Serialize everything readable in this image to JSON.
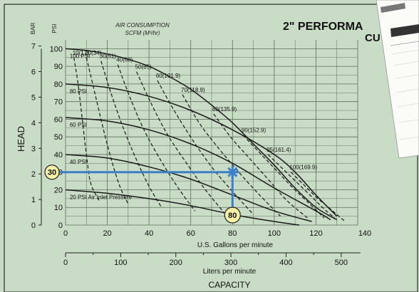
{
  "chart_data": {
    "type": "line",
    "title": "2\" PERFORMA",
    "subtitle": "CU",
    "air_consumption_label": "AIR CONSUMPTION",
    "air_consumption_units": "SCFM (M³/hr)",
    "ylabel": "HEAD",
    "psi_label": "PSI",
    "bar_label": "BAR",
    "x_gpm_label": "U.S. Gallons per minute",
    "x_lpm_label": "Liters per minute",
    "capacity_label": "CAPACITY",
    "x_gpm_ticks": [
      "0",
      "20",
      "40",
      "60",
      "80",
      "100",
      "120",
      "140"
    ],
    "x_lpm_ticks": [
      "0",
      "100",
      "200",
      "300",
      "400",
      "500"
    ],
    "y_psi_ticks": [
      "0",
      "10",
      "20",
      "30",
      "40",
      "50",
      "60",
      "70",
      "80",
      "90",
      "100"
    ],
    "y_bar_ticks": [
      "0",
      "1",
      "2",
      "3",
      "4",
      "5",
      "6",
      "7"
    ],
    "xlim_gpm": [
      0,
      140
    ],
    "ylim_psi": [
      0,
      105
    ],
    "grid": true,
    "pressure_curves": [
      {
        "name": "100 PSI",
        "x": [
          0,
          10,
          20,
          30,
          40,
          50,
          60,
          70,
          80,
          90,
          100,
          110,
          120,
          130
        ],
        "y": [
          100,
          99,
          97,
          94,
          90,
          84,
          77,
          68,
          58,
          46,
          34,
          21,
          10,
          3
        ]
      },
      {
        "name": "80 PSI",
        "x": [
          0,
          20,
          40,
          60,
          80,
          100,
          110,
          120,
          130
        ],
        "y": [
          80,
          78,
          73,
          65,
          54,
          40,
          30,
          17,
          5
        ]
      },
      {
        "name": "60 PSI",
        "x": [
          0,
          20,
          40,
          60,
          80,
          100,
          120,
          127
        ],
        "y": [
          61,
          59,
          54,
          46,
          35,
          21,
          8,
          3
        ]
      },
      {
        "name": "40 PSI",
        "x": [
          0,
          20,
          40,
          60,
          80,
          100,
          118
        ],
        "y": [
          40,
          38,
          33,
          26,
          17,
          8,
          2
        ]
      },
      {
        "name": "20 PSI Air Inlet Pressure",
        "x": [
          0,
          20,
          40,
          60,
          80,
          100,
          112
        ],
        "y": [
          20,
          18,
          15,
          11,
          6,
          2,
          0
        ]
      }
    ],
    "air_curves": [
      {
        "name": "10(17)",
        "x": [
          4,
          6,
          8,
          10,
          12,
          16
        ],
        "y": [
          95,
          80,
          60,
          40,
          24,
          14
        ]
      },
      {
        "name": "20(34)",
        "x": [
          10,
          14,
          18,
          22,
          26,
          30
        ],
        "y": [
          95,
          75,
          55,
          37,
          22,
          12
        ]
      },
      {
        "name": "30(51)",
        "x": [
          17,
          22,
          28,
          34,
          40,
          46
        ],
        "y": [
          93,
          74,
          54,
          37,
          22,
          10
        ]
      },
      {
        "name": "40(68)",
        "x": [
          25,
          31,
          38,
          46,
          54,
          62
        ],
        "y": [
          91,
          72,
          53,
          36,
          21,
          8
        ]
      },
      {
        "name": "50(85)",
        "x": [
          34,
          41,
          49,
          58,
          67,
          76
        ],
        "y": [
          87,
          69,
          51,
          35,
          20,
          7
        ]
      },
      {
        "name": "60(101.9)",
        "x": [
          44,
          52,
          61,
          70,
          80,
          90
        ],
        "y": [
          82,
          65,
          48,
          33,
          19,
          6
        ]
      },
      {
        "name": "70(118.9)",
        "x": [
          56,
          64,
          73,
          83,
          93,
          103
        ],
        "y": [
          74,
          58,
          44,
          30,
          17,
          5
        ]
      },
      {
        "name": "80(135.9)",
        "x": [
          71,
          79,
          88,
          97,
          106,
          116
        ],
        "y": [
          63,
          50,
          38,
          26,
          14,
          4
        ]
      },
      {
        "name": "90(152.9)",
        "x": [
          85,
          93,
          101,
          109,
          117,
          124
        ],
        "y": [
          51,
          41,
          31,
          21,
          12,
          4
        ]
      },
      {
        "name": "95(161.4)",
        "x": [
          97,
          104,
          111,
          118,
          124,
          129
        ],
        "y": [
          40,
          32,
          24,
          16,
          9,
          4
        ]
      },
      {
        "name": "100(169.9)",
        "x": [
          108,
          114,
          120,
          126,
          131,
          134
        ],
        "y": [
          30,
          23,
          16,
          10,
          5,
          2
        ]
      }
    ],
    "operating_point": {
      "x": 80,
      "y": 30,
      "x_badge": "80",
      "y_badge": "30"
    },
    "colors": {
      "background": "#c9dcc6",
      "grid": "#5e6e5c",
      "curves": "#1a1a1a",
      "highlight": "#3a7fc8",
      "badge_fill": "#f5f0a6"
    }
  }
}
